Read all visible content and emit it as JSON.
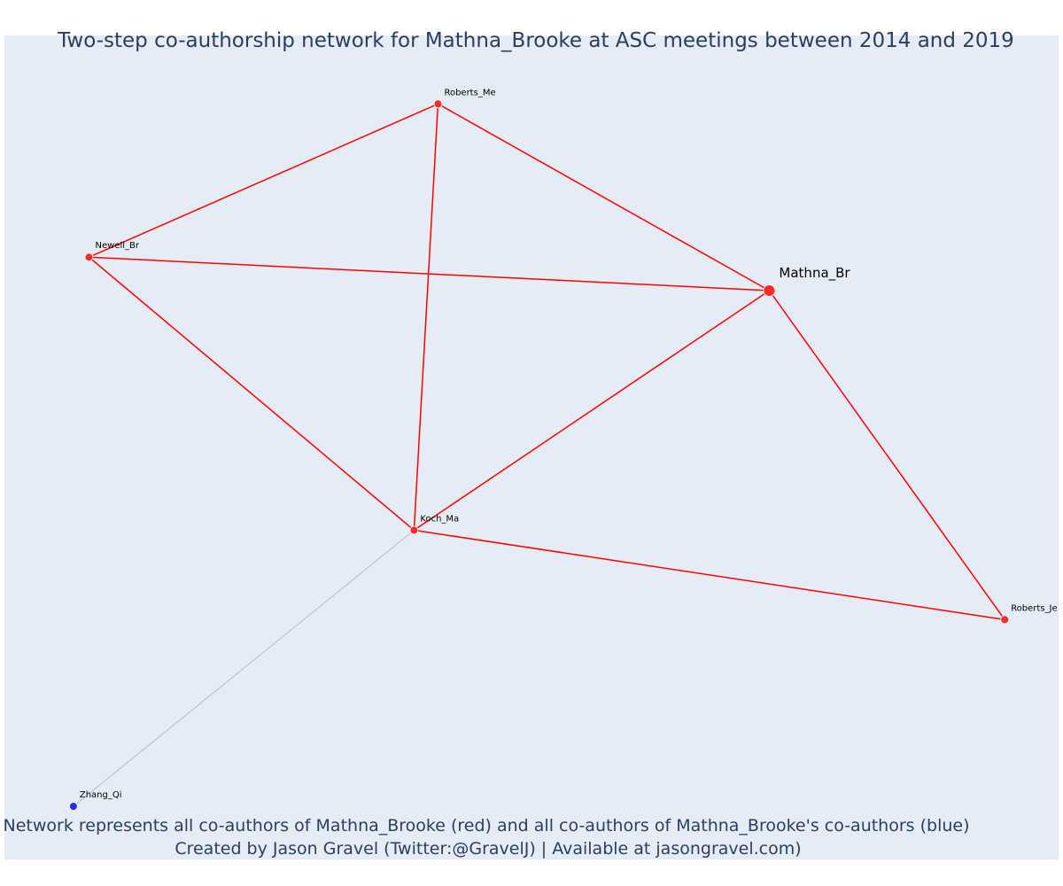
{
  "chart": {
    "title": "Two-step co-authorship network for Mathna_Brooke at ASC meetings between 2014 and 2019",
    "caption_line1": "Network represents all co-authors of Mathna_Brooke (red) and all co-authors of Mathna_Brooke's co-authors (blue)",
    "caption_line2": "Created by Jason Gravel (Twitter:@GravelJ) | Available at jasongravel.com)"
  },
  "colors": {
    "first_step": "#ff0000",
    "first_step_node": "#ff2a2a",
    "second_step_node": "#2a2aff",
    "second_step_edge": "#b8bcc8",
    "background": "#e5ecf6",
    "text": "#2a3f5f"
  },
  "chart_data": {
    "type": "network",
    "center": "Mathna_Br",
    "nodes": [
      {
        "id": "Mathna_Br",
        "label": "Mathna_Br",
        "group": "focal",
        "x": 0.724,
        "y": 0.713
      },
      {
        "id": "Roberts_Me",
        "label": "Roberts_Me",
        "group": "co-author",
        "x": 0.406,
        "y": 0.953
      },
      {
        "id": "Newell_Br",
        "label": "Newell_Br",
        "group": "co-author",
        "x": 0.071,
        "y": 0.756
      },
      {
        "id": "Koch_Ma",
        "label": "Koch_Ma",
        "group": "co-author",
        "x": 0.383,
        "y": 0.405
      },
      {
        "id": "Roberts_Je",
        "label": "Roberts_Je",
        "group": "co-author",
        "x": 0.95,
        "y": 0.29
      },
      {
        "id": "Zhang_Qi",
        "label": "Zhang_Qi",
        "group": "co-author-of-co-author",
        "x": 0.056,
        "y": 0.05
      }
    ],
    "edges": [
      {
        "source": "Roberts_Me",
        "target": "Newell_Br",
        "group": "first"
      },
      {
        "source": "Roberts_Me",
        "target": "Mathna_Br",
        "group": "first"
      },
      {
        "source": "Roberts_Me",
        "target": "Koch_Ma",
        "group": "first"
      },
      {
        "source": "Newell_Br",
        "target": "Mathna_Br",
        "group": "first"
      },
      {
        "source": "Newell_Br",
        "target": "Koch_Ma",
        "group": "first"
      },
      {
        "source": "Koch_Ma",
        "target": "Mathna_Br",
        "group": "first"
      },
      {
        "source": "Koch_Ma",
        "target": "Roberts_Je",
        "group": "first"
      },
      {
        "source": "Mathna_Br",
        "target": "Roberts_Je",
        "group": "first"
      },
      {
        "source": "Koch_Ma",
        "target": "Zhang_Qi",
        "group": "second"
      }
    ],
    "grid": false,
    "legend": "none"
  }
}
